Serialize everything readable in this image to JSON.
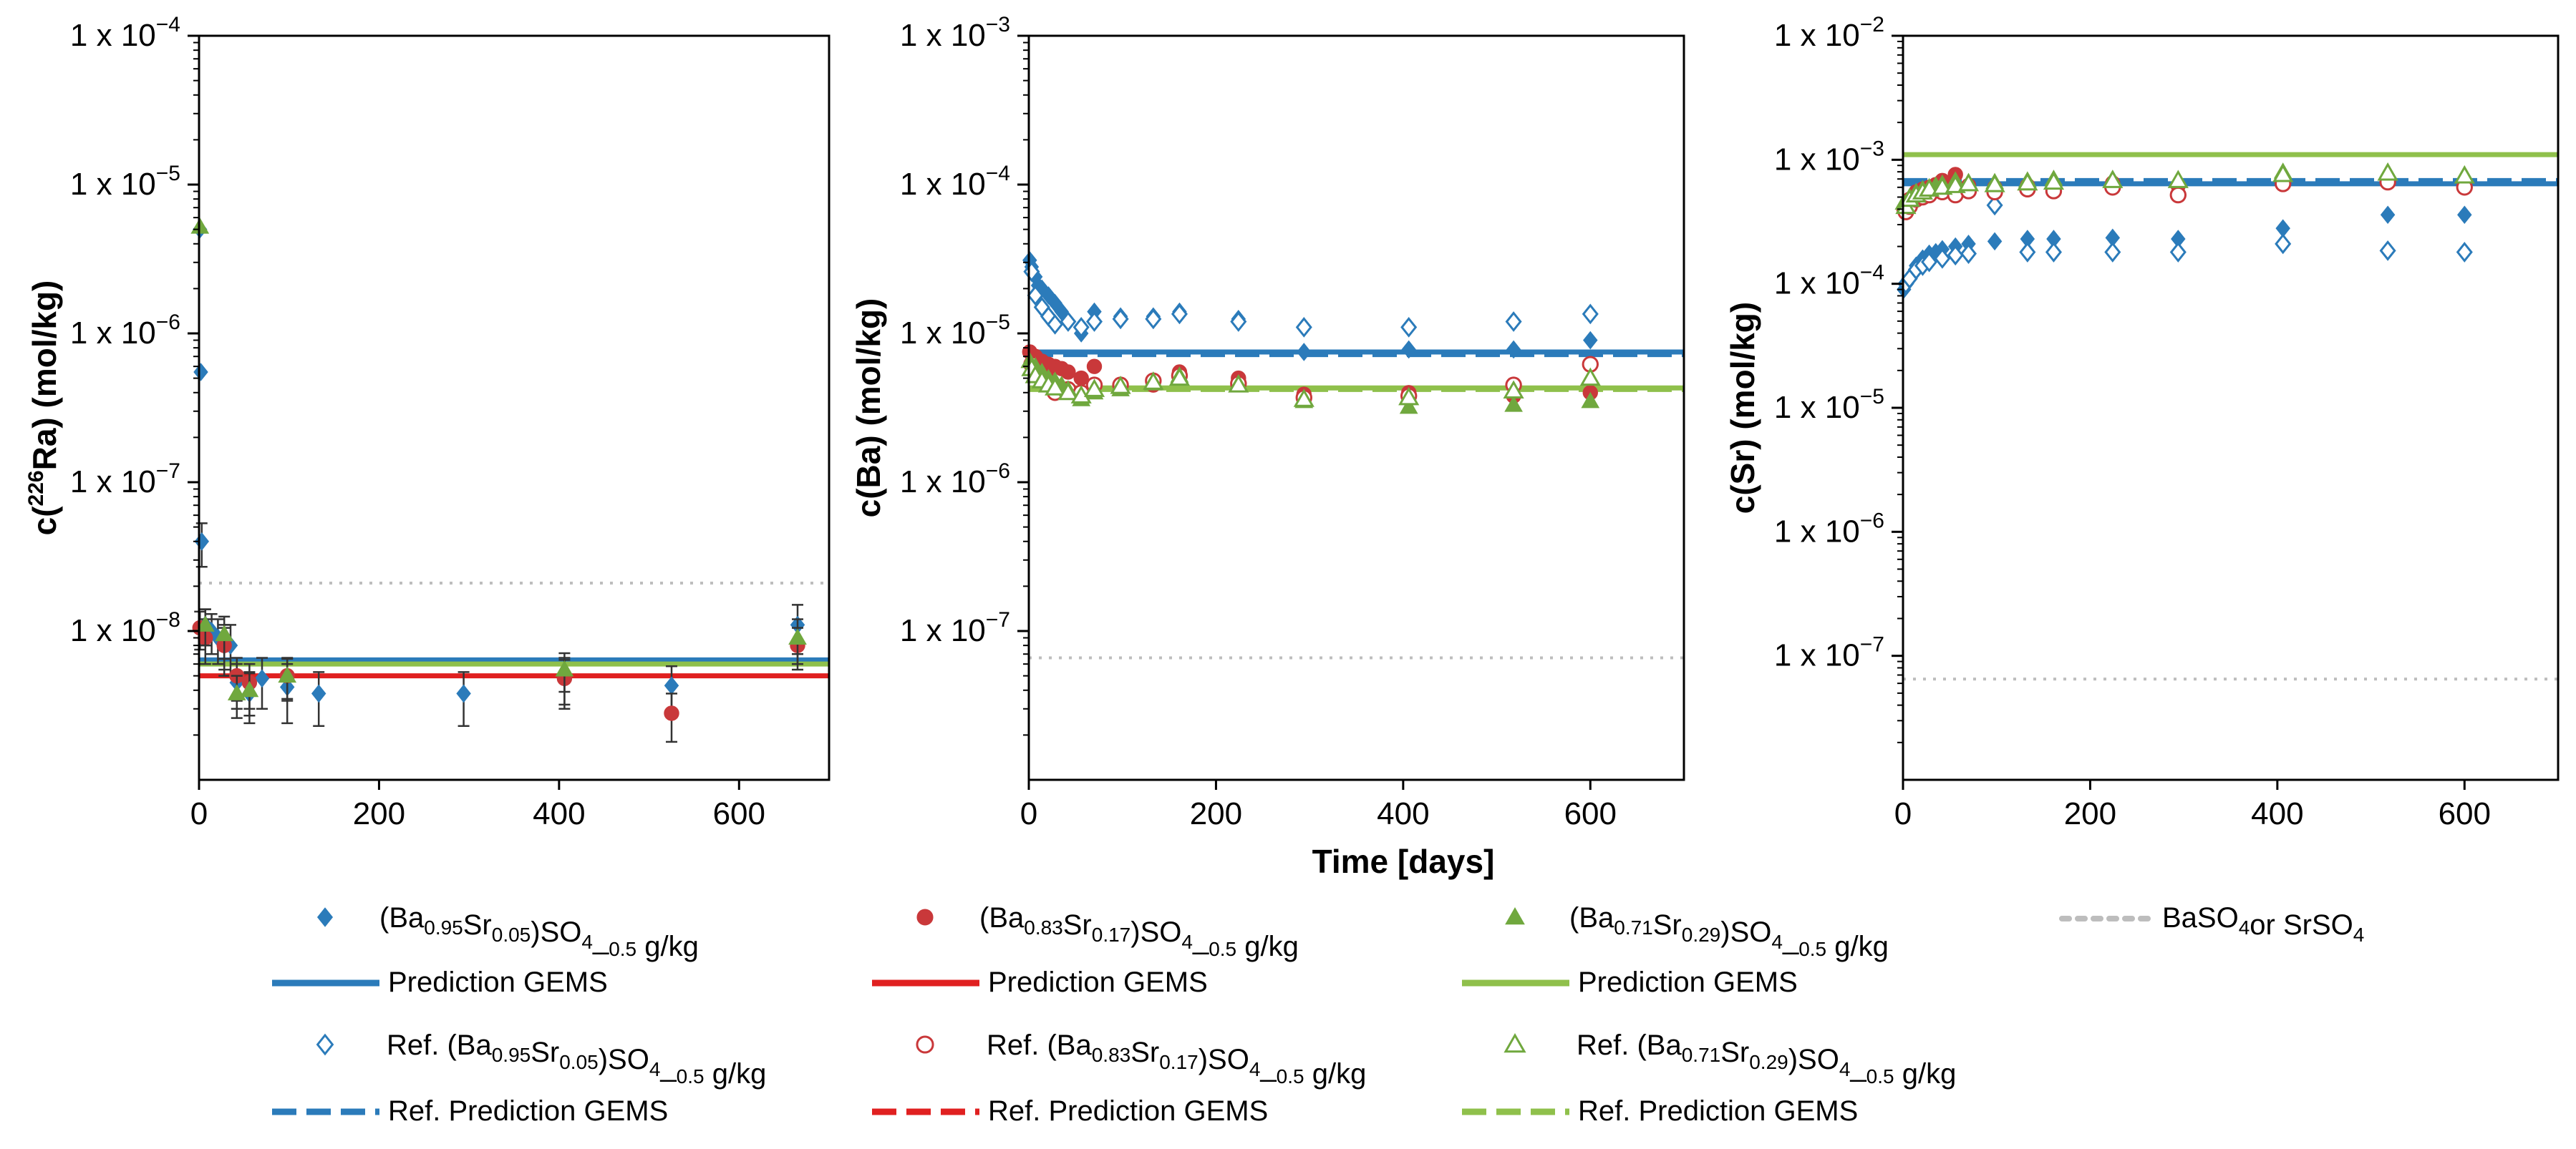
{
  "chart_data": {
    "type": "scatter",
    "y_scale": "log",
    "shared_xlabel": "Time [days]",
    "colors": {
      "blue": "#2b7bba",
      "red": "#e02020",
      "red_marker": "#c9383a",
      "green": "#8fc04b",
      "green_marker": "#70a83e",
      "gray": "#bdbdbd",
      "axis": "#000000",
      "errorbar": "#333333"
    },
    "legend": [
      {
        "label": "(Ba0.95Sr0.05)SO4_0.5 g/kg",
        "sym": "diamond-filled",
        "color": "blue"
      },
      {
        "label": "(Ba0.83Sr0.17)SO4_0.5 g/kg",
        "sym": "circle-filled",
        "color": "red"
      },
      {
        "label": "(Ba0.71Sr0.29)SO4_0.5 g/kg",
        "sym": "triangle-filled",
        "color": "green"
      },
      {
        "label": "BaSO4or SrSO4",
        "sym": "dotted-line",
        "color": "gray"
      },
      {
        "label": "Prediction GEMS",
        "sym": "solid-line",
        "color": "blue"
      },
      {
        "label": "Prediction GEMS",
        "sym": "solid-line",
        "color": "red"
      },
      {
        "label": "Prediction GEMS",
        "sym": "solid-line",
        "color": "green"
      },
      {
        "label": "Ref. (Ba0.95Sr0.05)SO4_0.5 g/kg",
        "sym": "diamond-open",
        "color": "blue"
      },
      {
        "label": "Ref. (Ba0.83Sr0.17)SO4_0.5 g/kg",
        "sym": "circle-open",
        "color": "red"
      },
      {
        "label": "Ref. (Ba0.71Sr0.29)SO4_0.5 g/kg",
        "sym": "triangle-open",
        "color": "green"
      },
      {
        "label": "Ref. Prediction GEMS",
        "sym": "dashed-line",
        "color": "blue"
      },
      {
        "label": "Ref. Prediction GEMS",
        "sym": "dashed-line",
        "color": "red"
      },
      {
        "label": "Ref. Prediction GEMS",
        "sym": "dashed-line",
        "color": "green"
      }
    ],
    "panels": [
      {
        "id": "ra",
        "ylabel": "c(226Ra) (mol/kg)",
        "xlim": [
          0,
          700
        ],
        "ylog_range": [
          -9,
          -4
        ],
        "xticks": [
          0,
          200,
          400,
          600
        ],
        "yticks": [
          -8,
          -7,
          -6,
          -5,
          -4
        ],
        "ytick_labels": [
          "1 x 10-8",
          "1 x 10-7",
          "1 x 10-6",
          "1 x 10-5",
          "1 x 10-4"
        ],
        "hlines": [
          {
            "y": 2.1e-08,
            "color": "gray",
            "style": "dotted"
          },
          {
            "y": 6.4e-09,
            "color": "blue",
            "style": "solid"
          },
          {
            "y": 6e-09,
            "color": "green",
            "style": "solid"
          },
          {
            "y": 5e-09,
            "color": "red",
            "style": "solid"
          }
        ],
        "series": [
          {
            "name": "(Ba0.95Sr0.05)SO4_0.5 g/kg",
            "marker": "diamond",
            "filled": true,
            "color": "blue",
            "x": [
              1,
              2,
              3,
              7,
              14,
              21,
              28,
              35,
              42,
              56,
              70,
              98,
              133,
              294,
              406,
              525,
              665
            ],
            "y": [
              5e-06,
              5.5e-07,
              4e-08,
              1.1e-08,
              1e-08,
              9e-09,
              8e-09,
              8e-09,
              4.5e-09,
              3.8e-09,
              4.8e-09,
              4.2e-09,
              3.8e-09,
              3.8e-09,
              4.8e-09,
              4.3e-09,
              1.1e-08
            ],
            "err": [
              0,
              0,
              1.3e-08,
              3e-09,
              3e-09,
              3e-09,
              3e-09,
              3e-09,
              1.5e-09,
              1.4e-09,
              1.8e-09,
              1.8e-09,
              1.5e-09,
              1.5e-09,
              1.8e-09,
              1.5e-09,
              4e-09
            ]
          },
          {
            "name": "(Ba0.83Sr0.17)SO4_0.5 g/kg",
            "marker": "circle",
            "filled": true,
            "color": "red",
            "x": [
              1,
              7,
              28,
              42,
              56,
              98,
              406,
              525,
              665
            ],
            "y": [
              1.05e-08,
              9e-09,
              8e-09,
              5e-09,
              4.5e-09,
              5e-09,
              4.8e-09,
              2.8e-09,
              8e-09
            ],
            "err": [
              3e-09,
              3e-09,
              2.5e-09,
              1.6e-09,
              1.5e-09,
              1.6e-09,
              1.6e-09,
              1e-09,
              2.5e-09
            ]
          },
          {
            "name": "(Ba0.71Sr0.29)SO4_0.5 g/kg",
            "marker": "triangle",
            "filled": true,
            "color": "green",
            "x": [
              1,
              7,
              28,
              42,
              56,
              98,
              406,
              665
            ],
            "y": [
              5.2e-06,
              1.1e-08,
              9.5e-09,
              3.8e-09,
              4e-09,
              5e-09,
              5.5e-09,
              9e-09
            ],
            "err": [
              0,
              3e-09,
              3e-09,
              1.2e-09,
              1.3e-09,
              1.5e-09,
              1.6e-09,
              3e-09
            ]
          }
        ]
      },
      {
        "id": "ba",
        "ylabel": "c(Ba) (mol/kg)",
        "xlim": [
          0,
          700
        ],
        "ylog_range": [
          -8,
          -3
        ],
        "xticks": [
          0,
          200,
          400,
          600
        ],
        "yticks": [
          -7,
          -6,
          -5,
          -4,
          -3
        ],
        "ytick_labels": [
          "1 x 10-7",
          "1 x 10-6",
          "1 x 10-5",
          "1 x 10-4",
          "1 x 10-3"
        ],
        "hlines": [
          {
            "y": 6.6e-08,
            "color": "gray",
            "style": "dotted"
          },
          {
            "y": 7.5e-06,
            "color": "blue",
            "style": "solid"
          },
          {
            "y": 7.2e-06,
            "color": "blue",
            "style": "dashed"
          },
          {
            "y": 4.3e-06,
            "color": "green",
            "style": "solid"
          },
          {
            "y": 4.2e-06,
            "color": "green",
            "style": "dashed"
          }
        ],
        "series": [
          {
            "name": "(Ba0.95Sr0.05)SO4_0.5 g/kg",
            "marker": "diamond",
            "filled": true,
            "color": "blue",
            "x": [
              1,
              3,
              7,
              10,
              14,
              21,
              28,
              35,
              42,
              56,
              70,
              98,
              133,
              161,
              224,
              294,
              406,
              518,
              600
            ],
            "y": [
              3.1e-05,
              2.8e-05,
              2.4e-05,
              2.1e-05,
              2e-05,
              1.8e-05,
              1.6e-05,
              1.4e-05,
              1.2e-05,
              1e-05,
              1.4e-05,
              1.3e-05,
              1.3e-05,
              1.4e-05,
              1.25e-05,
              7.5e-06,
              7.8e-06,
              7.8e-06,
              9e-06
            ]
          },
          {
            "name": "Ref. (Ba0.95Sr0.05)SO4_0.5 g/kg",
            "marker": "diamond",
            "filled": false,
            "color": "blue",
            "x": [
              3,
              7,
              14,
              21,
              28,
              42,
              56,
              70,
              98,
              133,
              161,
              224,
              294,
              406,
              518,
              600
            ],
            "y": [
              2.6e-05,
              1.8e-05,
              1.5e-05,
              1.3e-05,
              1.15e-05,
              1.2e-05,
              1.1e-05,
              1.2e-05,
              1.25e-05,
              1.25e-05,
              1.35e-05,
              1.2e-05,
              1.1e-05,
              1.1e-05,
              1.2e-05,
              1.35e-05
            ]
          },
          {
            "name": "(Ba0.83Sr0.17)SO4_0.5 g/kg",
            "marker": "circle",
            "filled": true,
            "color": "red",
            "x": [
              1,
              7,
              14,
              21,
              28,
              35,
              42,
              56,
              70,
              98,
              133,
              161,
              224,
              294,
              406,
              518,
              600
            ],
            "y": [
              7.5e-06,
              7e-06,
              6.5e-06,
              6.2e-06,
              6e-06,
              5.8e-06,
              5.5e-06,
              5e-06,
              6e-06,
              4.5e-06,
              4.5e-06,
              5.5e-06,
              5e-06,
              3.9e-06,
              4e-06,
              3.8e-06,
              4e-06
            ]
          },
          {
            "name": "Ref. (Ba0.83Sr0.17)SO4_0.5 g/kg",
            "marker": "circle",
            "filled": false,
            "color": "red",
            "x": [
              3,
              7,
              14,
              21,
              28,
              42,
              56,
              70,
              98,
              133,
              161,
              224,
              294,
              406,
              518,
              600
            ],
            "y": [
              6.2e-06,
              5.5e-06,
              5e-06,
              4.8e-06,
              4e-06,
              4.2e-06,
              4e-06,
              4.5e-06,
              4.5e-06,
              4.8e-06,
              5.2e-06,
              4.6e-06,
              3.7e-06,
              3.8e-06,
              4.5e-06,
              6.2e-06
            ]
          },
          {
            "name": "(Ba0.71Sr0.29)SO4_0.5 g/kg",
            "marker": "triangle",
            "filled": true,
            "color": "green",
            "x": [
              1,
              7,
              14,
              21,
              28,
              35,
              42,
              56,
              70,
              98,
              133,
              161,
              224,
              294,
              406,
              518,
              600
            ],
            "y": [
              6.5e-06,
              6e-06,
              5.5e-06,
              5e-06,
              4.8e-06,
              4.5e-06,
              4.2e-06,
              3.6e-06,
              4e-06,
              4.2e-06,
              4.6e-06,
              5.2e-06,
              4.6e-06,
              3.5e-06,
              3.2e-06,
              3.3e-06,
              3.5e-06
            ]
          },
          {
            "name": "Ref. (Ba0.71Sr0.29)SO4_0.5 g/kg",
            "marker": "triangle",
            "filled": false,
            "color": "green",
            "x": [
              3,
              7,
              14,
              21,
              28,
              42,
              56,
              70,
              98,
              133,
              161,
              224,
              294,
              406,
              518,
              600
            ],
            "y": [
              5.8e-06,
              5.2e-06,
              4.8e-06,
              4.5e-06,
              4.3e-06,
              4e-06,
              3.8e-06,
              4.2e-06,
              4.4e-06,
              4.7e-06,
              5e-06,
              4.5e-06,
              3.6e-06,
              3.7e-06,
              4.1e-06,
              5e-06
            ]
          }
        ]
      },
      {
        "id": "sr",
        "ylabel": "c(Sr) (mol/kg)",
        "xlim": [
          0,
          700
        ],
        "ylog_range": [
          -8,
          -2
        ],
        "xticks": [
          0,
          200,
          400,
          600
        ],
        "yticks": [
          -7,
          -6,
          -5,
          -4,
          -3,
          -2
        ],
        "ytick_labels": [
          "1 x 10-7",
          "1 x 10-6",
          "1 x 10-5",
          "1 x 10-4",
          "1 x 10-3",
          "1 x 10-2"
        ],
        "hlines": [
          {
            "y": 6.5e-08,
            "color": "gray",
            "style": "dotted"
          },
          {
            "y": 0.0011,
            "color": "green",
            "style": "solid"
          },
          {
            "y": 0.00068,
            "color": "blue",
            "style": "dashed"
          },
          {
            "y": 0.00064,
            "color": "blue",
            "style": "solid"
          }
        ],
        "series": [
          {
            "name": "(Ba0.95Sr0.05)SO4_0.5 g/kg",
            "marker": "diamond",
            "filled": true,
            "color": "blue",
            "x": [
              1,
              3,
              7,
              10,
              14,
              21,
              28,
              35,
              42,
              56,
              70,
              98,
              133,
              161,
              224,
              294,
              406,
              518,
              600
            ],
            "y": [
              9e-05,
              0.0001,
              0.00011,
              0.00012,
              0.00014,
              0.00016,
              0.000175,
              0.00018,
              0.00019,
              0.0002,
              0.00021,
              0.00022,
              0.00023,
              0.00023,
              0.000235,
              0.00023,
              0.00028,
              0.00036,
              0.00036
            ]
          },
          {
            "name": "Ref. (Ba0.95Sr0.05)SO4_0.5 g/kg",
            "marker": "diamond",
            "filled": false,
            "color": "blue",
            "x": [
              3,
              7,
              14,
              21,
              28,
              42,
              56,
              70,
              98,
              133,
              161,
              224,
              294,
              406,
              518,
              600
            ],
            "y": [
              0.0001,
              0.00011,
              0.00013,
              0.00014,
              0.00015,
              0.00016,
              0.00017,
              0.000175,
              0.00043,
              0.00018,
              0.00018,
              0.00018,
              0.00018,
              0.00021,
              0.000185,
              0.00018
            ]
          },
          {
            "name": "(Ba0.83Sr0.17)SO4_0.5 g/kg",
            "marker": "circle",
            "filled": true,
            "color": "red",
            "x": [
              1,
              7,
              14,
              21,
              28,
              35,
              42,
              56,
              70,
              98,
              133,
              161,
              224,
              294,
              406,
              518,
              600
            ],
            "y": [
              0.0004,
              0.00048,
              0.00055,
              0.00058,
              0.0006,
              0.00063,
              0.00068,
              0.00076,
              0.00062,
              0.0006,
              0.00062,
              0.00062,
              0.00065,
              0.00062,
              0.00068,
              0.0007,
              0.00066
            ]
          },
          {
            "name": "Ref. (Ba0.83Sr0.17)SO4_0.5 g/kg",
            "marker": "circle",
            "filled": false,
            "color": "red",
            "x": [
              3,
              7,
              14,
              21,
              28,
              42,
              56,
              70,
              98,
              133,
              161,
              224,
              294,
              406,
              518,
              600
            ],
            "y": [
              0.00038,
              0.00042,
              0.00048,
              0.0005,
              0.00052,
              0.00055,
              0.00052,
              0.00056,
              0.00055,
              0.00058,
              0.00056,
              0.0006,
              0.00052,
              0.00064,
              0.00066,
              0.0006
            ]
          },
          {
            "name": "(Ba0.71Sr0.29)SO4_0.5 g/kg",
            "marker": "triangle",
            "filled": true,
            "color": "green",
            "x": [
              1,
              7,
              14,
              21,
              28,
              35,
              42,
              56,
              70,
              98,
              133,
              161,
              224,
              294,
              406,
              518,
              600
            ],
            "y": [
              0.00045,
              0.0005,
              0.00055,
              0.00058,
              0.0006,
              0.00062,
              0.00064,
              0.00068,
              0.00066,
              0.00066,
              0.00068,
              0.0007,
              0.0007,
              0.00068,
              0.0008,
              0.0008,
              0.00076
            ]
          },
          {
            "name": "Ref. (Ba0.71Sr0.29)SO4_0.5 g/kg",
            "marker": "triangle",
            "filled": false,
            "color": "green",
            "x": [
              3,
              7,
              14,
              21,
              28,
              42,
              56,
              70,
              98,
              133,
              161,
              224,
              294,
              406,
              518,
              600
            ],
            "y": [
              0.00042,
              0.00048,
              0.00052,
              0.00055,
              0.00058,
              0.0006,
              0.00062,
              0.00064,
              0.00063,
              0.00065,
              0.00066,
              0.00068,
              0.00068,
              0.00076,
              0.00078,
              0.00074
            ]
          }
        ]
      }
    ]
  }
}
